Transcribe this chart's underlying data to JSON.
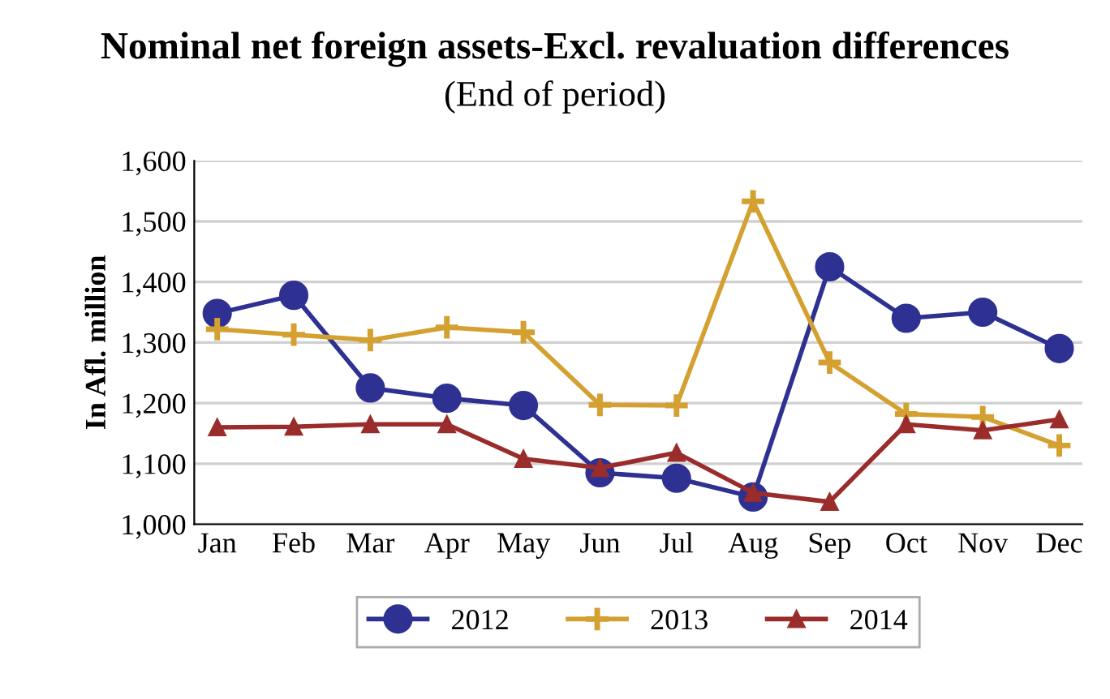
{
  "chart_data": {
    "type": "line",
    "title": "Nominal net foreign assets-Excl. revaluation differences",
    "subtitle": "(End of period)",
    "ylabel": "In Afl. million",
    "categories": [
      "Jan",
      "Feb",
      "Mar",
      "Apr",
      "May",
      "Jun",
      "Jul",
      "Aug",
      "Sep",
      "Oct",
      "Nov",
      "Dec"
    ],
    "series": [
      {
        "name": "2012",
        "color": "#2e3192",
        "marker": "circle",
        "values": [
          1348,
          1378,
          1225,
          1208,
          1196,
          1085,
          1076,
          1045,
          1425,
          1340,
          1350,
          1290
        ]
      },
      {
        "name": "2013",
        "color": "#d4a030",
        "marker": "cross",
        "values": [
          1322,
          1313,
          1304,
          1325,
          1317,
          1197,
          1196,
          1533,
          1267,
          1182,
          1177,
          1130
        ]
      },
      {
        "name": "2014",
        "color": "#9b2c2c",
        "marker": "triangle",
        "values": [
          1160,
          1161,
          1165,
          1165,
          1108,
          1093,
          1118,
          1052,
          1037,
          1165,
          1155,
          1173
        ]
      }
    ],
    "ylim": [
      1000,
      1600
    ],
    "yticks": [
      {
        "value": 1000,
        "label": "1,000"
      },
      {
        "value": 1100,
        "label": "1,100"
      },
      {
        "value": 1200,
        "label": "1,200"
      },
      {
        "value": 1300,
        "label": "1,300"
      },
      {
        "value": 1400,
        "label": "1,400"
      },
      {
        "value": 1500,
        "label": "1,500"
      },
      {
        "value": 1600,
        "label": "1,600"
      }
    ],
    "grid": "y",
    "legend": "bottom",
    "line_style": "solid"
  }
}
